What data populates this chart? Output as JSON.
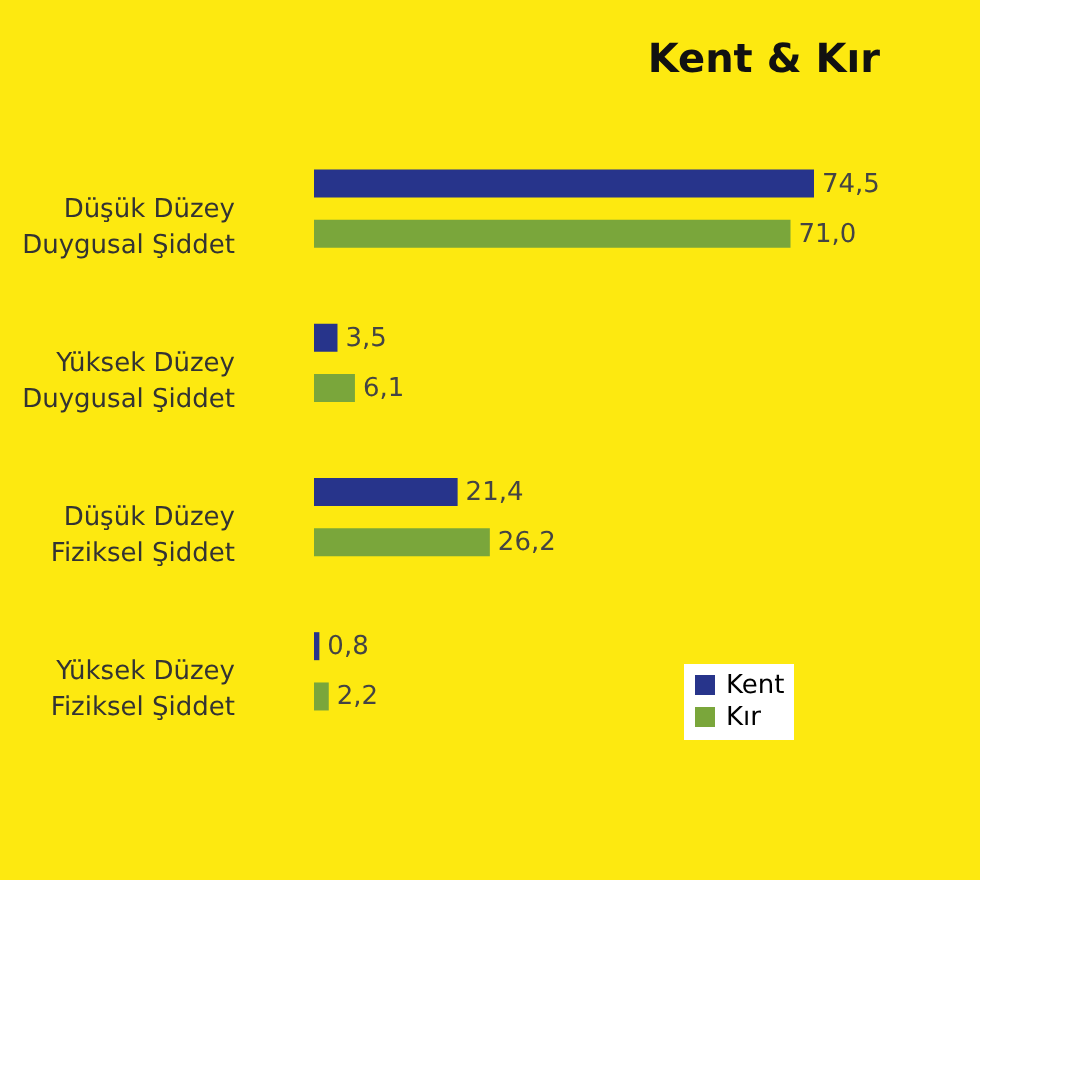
{
  "chart_data": {
    "type": "bar",
    "orientation": "horizontal",
    "title": "Kent & Kır",
    "categories": [
      "Düşük Düzey\nDuygusal Şiddet",
      "Yüksek Düzey\nDuygusal Şiddet",
      "Düşük Düzey\nFiziksel Şiddet",
      "Yüksek Düzey\nFiziksel Şiddet"
    ],
    "series": [
      {
        "name": "Kent",
        "color": "#27348b",
        "values": [
          74.5,
          3.5,
          21.4,
          0.8
        ],
        "value_labels": [
          "74,5",
          "3,5",
          "21,4",
          "0,8"
        ]
      },
      {
        "name": "Kır",
        "color": "#7aa63b",
        "values": [
          71.0,
          6.1,
          26.2,
          2.2
        ],
        "value_labels": [
          "71,0",
          "6,1",
          "26,2",
          "2,2"
        ]
      }
    ],
    "legend": "bottom right"
  }
}
